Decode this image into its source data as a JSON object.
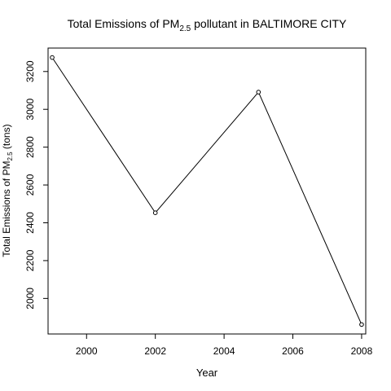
{
  "chart_data": {
    "type": "line",
    "title": {
      "prefix": "Total Emissions of PM",
      "subscript": "2.5",
      "suffix": " pollutant in BALTIMORE CITY"
    },
    "xlabel": "Year",
    "ylabel": {
      "prefix": "Total Emissions of PM",
      "subscript": "2.5",
      "suffix": " (tons)"
    },
    "x": [
      1999,
      2002,
      2005,
      2008
    ],
    "y": [
      3274,
      2453,
      3091,
      1862
    ],
    "xlim": [
      1998.88,
      2008.12
    ],
    "ylim": [
      1812,
      3324
    ],
    "xticks": [
      2000,
      2002,
      2004,
      2006,
      2008
    ],
    "yticks": [
      2000,
      2200,
      2400,
      2600,
      2800,
      3000,
      3200
    ],
    "marker": "open-circle",
    "line_color": "#000000",
    "grid": false,
    "legend": false
  }
}
